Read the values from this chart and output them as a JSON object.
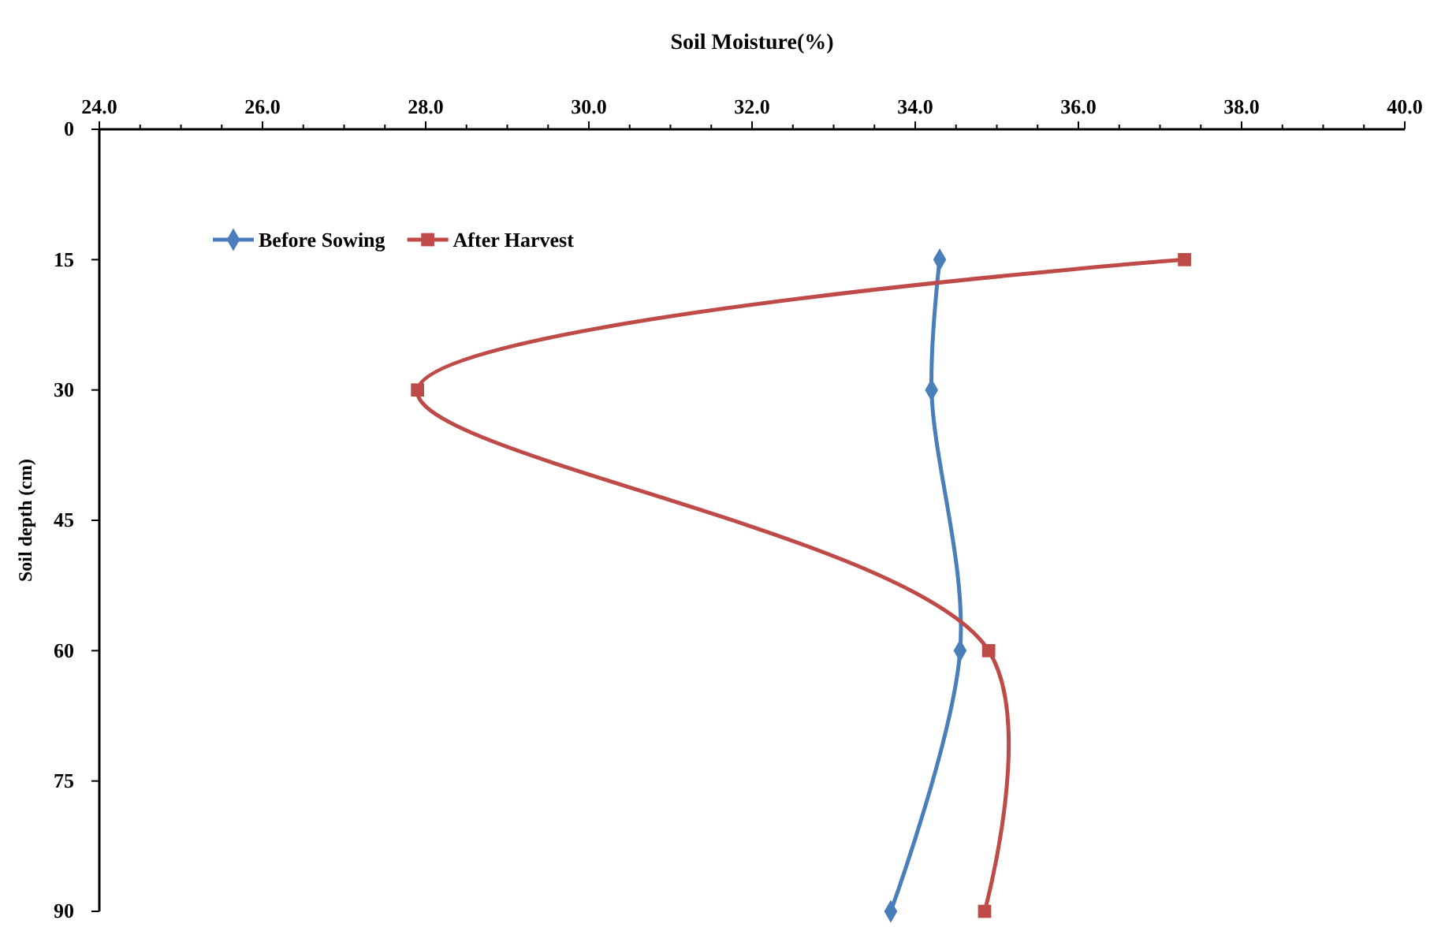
{
  "chart_data": {
    "type": "line",
    "xlabel": "Soil Moisture(%)",
    "ylabel": "Soil depth (cm)",
    "xlim": [
      24,
      40
    ],
    "xticks": [
      {
        "value": 24,
        "label": "24.0"
      },
      {
        "value": 24.5,
        "label": null
      },
      {
        "value": 25,
        "label": null
      },
      {
        "value": 25.5,
        "label": null
      },
      {
        "value": 26,
        "label": "26.0"
      },
      {
        "value": 26.5,
        "label": null
      },
      {
        "value": 27,
        "label": null
      },
      {
        "value": 27.5,
        "label": null
      },
      {
        "value": 28,
        "label": "28.0"
      },
      {
        "value": 28.5,
        "label": null
      },
      {
        "value": 29,
        "label": null
      },
      {
        "value": 29.5,
        "label": null
      },
      {
        "value": 30,
        "label": "30.0"
      },
      {
        "value": 30.5,
        "label": null
      },
      {
        "value": 31,
        "label": null
      },
      {
        "value": 31.5,
        "label": null
      },
      {
        "value": 32,
        "label": "32.0"
      },
      {
        "value": 32.5,
        "label": null
      },
      {
        "value": 33,
        "label": null
      },
      {
        "value": 33.5,
        "label": null
      },
      {
        "value": 34,
        "label": "34.0"
      },
      {
        "value": 34.5,
        "label": null
      },
      {
        "value": 35,
        "label": null
      },
      {
        "value": 35.5,
        "label": null
      },
      {
        "value": 36,
        "label": "36.0"
      },
      {
        "value": 36.5,
        "label": null
      },
      {
        "value": 37,
        "label": null
      },
      {
        "value": 37.5,
        "label": null
      },
      {
        "value": 38,
        "label": "38.0"
      },
      {
        "value": 38.5,
        "label": null
      },
      {
        "value": 39,
        "label": null
      },
      {
        "value": 39.5,
        "label": null
      },
      {
        "value": 40,
        "label": "40.0"
      }
    ],
    "ylim": [
      90,
      0
    ],
    "yticks": [
      0,
      15,
      30,
      45,
      60,
      75,
      90
    ],
    "series": [
      {
        "name": "Before Sowing",
        "color": "#4a7ebb",
        "marker": "diamond",
        "x": [
          34.3,
          34.2,
          34.55,
          33.7
        ],
        "values": [
          15,
          30,
          60,
          90
        ]
      },
      {
        "name": "After Harvest",
        "color": "#be4b48",
        "marker": "square",
        "x": [
          37.3,
          27.9,
          34.9,
          34.85
        ],
        "values": [
          15,
          30,
          60,
          90
        ]
      }
    ],
    "legend": "top left",
    "grid": false
  }
}
